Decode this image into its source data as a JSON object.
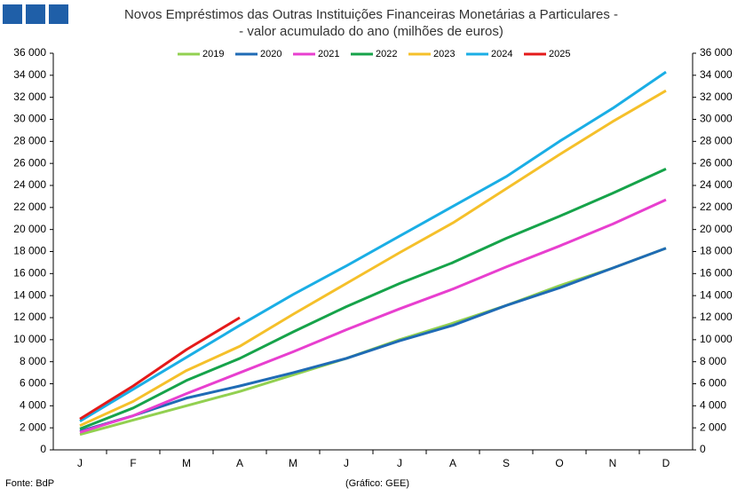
{
  "chart_data": {
    "type": "line",
    "title": "Novos Empréstimos das Outras Instituições Financeiras Monetárias a Particulares -",
    "subtitle": "- valor acumulado do ano (milhões de euros)",
    "source": "Fonte: BdP",
    "credit": "(Gráfico: GEE)",
    "categories": [
      "J",
      "F",
      "M",
      "A",
      "M",
      "J",
      "J",
      "A",
      "S",
      "O",
      "N",
      "D"
    ],
    "series": [
      {
        "name": "2019",
        "color": "#92d050",
        "values": [
          1400,
          2700,
          4000,
          5300,
          6800,
          8300,
          10000,
          11500,
          13100,
          14900,
          16500,
          18300
        ]
      },
      {
        "name": "2020",
        "color": "#1f6bb5",
        "values": [
          1700,
          3100,
          4700,
          5800,
          7000,
          8300,
          9900,
          11300,
          13100,
          14700,
          16500,
          18300
        ]
      },
      {
        "name": "2021",
        "color": "#e83fcf",
        "values": [
          1600,
          3100,
          5100,
          7000,
          8900,
          10900,
          12800,
          14600,
          16600,
          18500,
          20500,
          22700
        ]
      },
      {
        "name": "2022",
        "color": "#16a34a",
        "values": [
          1900,
          3800,
          6300,
          8300,
          10700,
          13000,
          15100,
          17000,
          19200,
          21200,
          23300,
          25500
        ]
      },
      {
        "name": "2023",
        "color": "#f5c02a",
        "values": [
          2200,
          4400,
          7200,
          9400,
          12300,
          15100,
          17900,
          20600,
          23700,
          26800,
          29800,
          32600
        ]
      },
      {
        "name": "2024",
        "color": "#1aaee5",
        "values": [
          2600,
          5500,
          8400,
          11300,
          14100,
          16700,
          19400,
          22100,
          24800,
          28000,
          31000,
          34300
        ]
      },
      {
        "name": "2025",
        "color": "#e41a1a",
        "values": [
          2800,
          5800,
          9100,
          12000,
          null,
          null,
          null,
          null,
          null,
          null,
          null,
          null
        ]
      }
    ],
    "ylim": [
      0,
      36000
    ],
    "yticks": [
      0,
      {
        "value": 2000,
        "label": "2 000"
      },
      {
        "value": 4000,
        "label": "4 000"
      },
      {
        "value": 6000,
        "label": "6 000"
      },
      {
        "value": 8000,
        "label": "8 000"
      },
      {
        "value": 10000,
        "label": "10 000"
      },
      {
        "value": 12000,
        "label": "12 000"
      },
      {
        "value": 14000,
        "label": "14 000"
      },
      {
        "value": 16000,
        "label": "16 000"
      },
      {
        "value": 18000,
        "label": "18 000"
      },
      {
        "value": 20000,
        "label": "20 000"
      },
      {
        "value": 22000,
        "label": "22 000"
      },
      {
        "value": 24000,
        "label": "24 000"
      },
      {
        "value": 26000,
        "label": "26 000"
      },
      {
        "value": 28000,
        "label": "28 000"
      },
      {
        "value": 30000,
        "label": "30 000"
      },
      {
        "value": 32000,
        "label": "32 000"
      },
      {
        "value": 34000,
        "label": "34 000"
      },
      {
        "value": 36000,
        "label": "36 000"
      }
    ],
    "y2lim": [
      0,
      36000
    ],
    "y2ticks": [
      0,
      {
        "value": 2000,
        "label": "2 000"
      },
      {
        "value": 4000,
        "label": "4 000"
      },
      {
        "value": 6000,
        "label": "6 000"
      },
      {
        "value": 8000,
        "label": "8 000"
      },
      {
        "value": 10000,
        "label": "10 000"
      },
      {
        "value": 12000,
        "label": "12 000"
      },
      {
        "value": 14000,
        "label": "14 000"
      },
      {
        "value": 16000,
        "label": "16 000"
      },
      {
        "value": 18000,
        "label": "18 000"
      },
      {
        "value": 20000,
        "label": "20 000"
      },
      {
        "value": 22000,
        "label": "22 000"
      },
      {
        "value": 24000,
        "label": "24 000"
      },
      {
        "value": 26000,
        "label": "26 000"
      },
      {
        "value": 28000,
        "label": "28 000"
      },
      {
        "value": 30000,
        "label": "30 000"
      },
      {
        "value": 32000,
        "label": "32 000"
      },
      {
        "value": 34000,
        "label": "34 000"
      },
      {
        "value": 36000,
        "label": "36 000"
      }
    ],
    "grid": false,
    "legend": "top"
  }
}
